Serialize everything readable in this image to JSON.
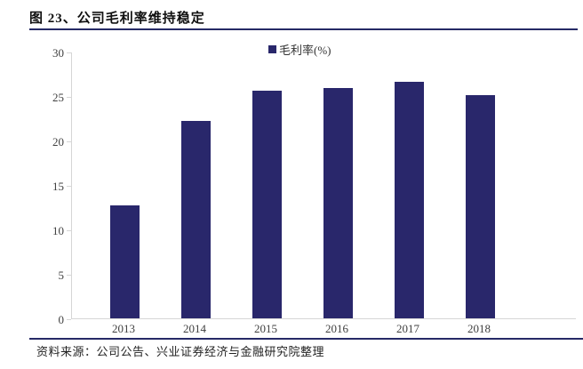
{
  "figure": {
    "title": "图 23、公司毛利率维持稳定",
    "source": "资料来源：公司公告、兴业证券经济与金融研究院整理"
  },
  "chart_data": {
    "type": "bar",
    "title": "图 23、公司毛利率维持稳定",
    "legend": [
      "毛利率(%)"
    ],
    "legend_position": "top-center",
    "categories": [
      "2013",
      "2014",
      "2015",
      "2016",
      "2017",
      "2018"
    ],
    "values": [
      12.7,
      22.2,
      25.6,
      25.9,
      26.6,
      25.1
    ],
    "xlabel": "",
    "ylabel": "",
    "ylim": [
      0,
      30
    ],
    "yticks": [
      0,
      5,
      10,
      15,
      20,
      25,
      30
    ],
    "grid": false,
    "bar_color": "#29276b"
  },
  "colors": {
    "accent_navy": "#262a66",
    "bar_navy": "#29276b",
    "axis_gray": "#d6d6d6",
    "tick_text": "#3f3f3f"
  }
}
